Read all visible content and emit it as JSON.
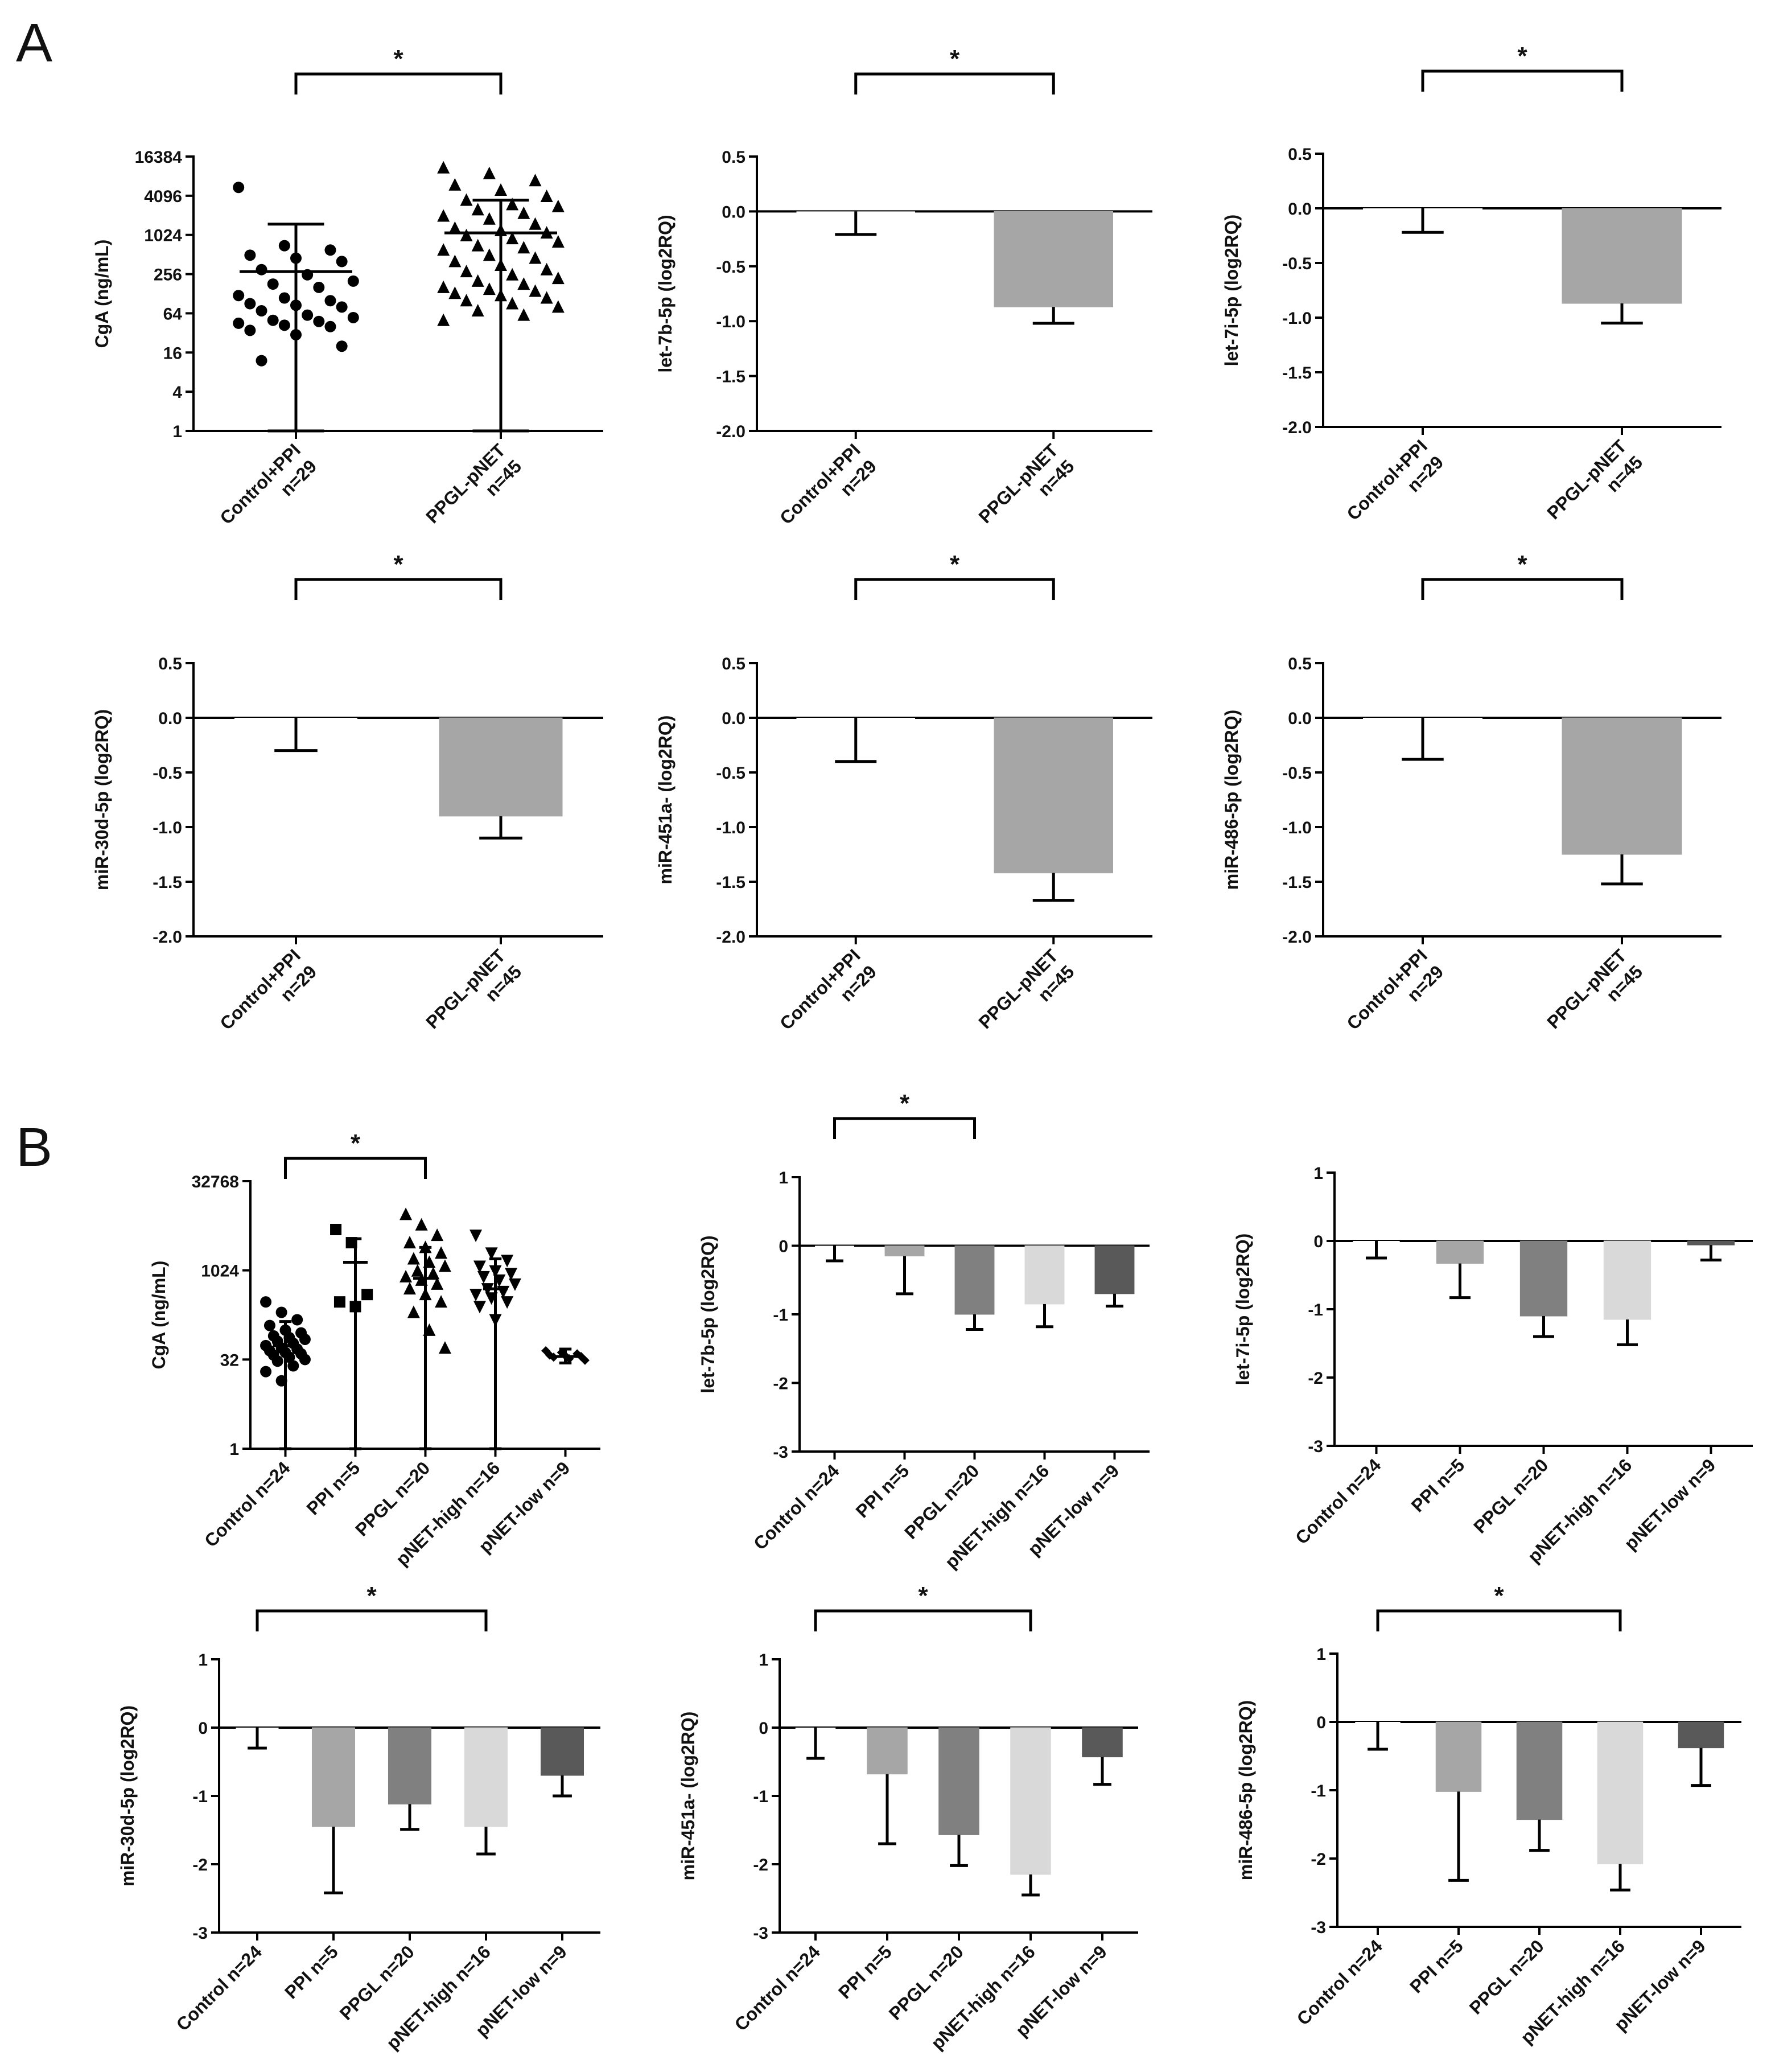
{
  "panels": [
    "A",
    "B"
  ],
  "chart_data": [
    {
      "panel": "A",
      "type": "scatter",
      "ylabel": "CgA (ng/mL)",
      "scale": "log2",
      "yticks": [
        1,
        4,
        16,
        64,
        256,
        1024,
        4096,
        16384
      ],
      "ytick_labels": [
        "1",
        "4",
        "16",
        "64",
        "256",
        "1024",
        "4096",
        "16384"
      ],
      "categories": [
        [
          "Control+PPI",
          "n=29"
        ],
        [
          "PPGL-pNET",
          "n=45"
        ]
      ],
      "markers": [
        "circle",
        "triangle"
      ],
      "means": [
        280,
        1100
      ],
      "err_lo": [
        1,
        1
      ],
      "err_hi": [
        1500,
        3500
      ],
      "points": [
        [
          5500,
          700,
          600,
          500,
          450,
          400,
          300,
          250,
          200,
          180,
          160,
          120,
          110,
          100,
          90,
          85,
          80,
          70,
          60,
          55,
          50,
          48,
          45,
          42,
          40,
          35,
          30,
          20,
          12
        ],
        [
          11000,
          9000,
          7000,
          6000,
          5000,
          4000,
          3500,
          3000,
          2800,
          2500,
          2200,
          2000,
          1800,
          1500,
          1300,
          1200,
          1100,
          1000,
          900,
          800,
          700,
          650,
          600,
          500,
          450,
          400,
          350,
          300,
          280,
          250,
          220,
          200,
          180,
          160,
          150,
          140,
          130,
          120,
          110,
          100,
          90,
          80,
          70,
          60,
          50
        ]
      ],
      "significance": [
        {
          "from": 0,
          "to": 1,
          "label": "*"
        }
      ]
    },
    {
      "panel": "A",
      "type": "bar",
      "ylabel": "let-7b-5p (log2RQ)",
      "ylim": [
        -2.0,
        0.5
      ],
      "yticks": [
        0.5,
        0.0,
        -0.5,
        -1.0,
        -1.5,
        -2.0
      ],
      "ytick_labels": [
        "0.5",
        "0.0",
        "-0.5",
        "-1.0",
        "-1.5",
        "-2.0"
      ],
      "categories": [
        [
          "Control+PPI",
          "n=29"
        ],
        [
          "PPGL-pNET",
          "n=45"
        ]
      ],
      "values": [
        0.0,
        -0.87
      ],
      "errors": [
        0.21,
        0.15
      ],
      "colors": [
        "#ffffff",
        "#a6a6a6"
      ],
      "significance": [
        {
          "from": 0,
          "to": 1,
          "label": "*"
        }
      ]
    },
    {
      "panel": "A",
      "type": "bar",
      "ylabel": "let-7i-5p (log2RQ)",
      "ylim": [
        -2.0,
        0.5
      ],
      "yticks": [
        0.5,
        0.0,
        -0.5,
        -1.0,
        -1.5,
        -2.0
      ],
      "ytick_labels": [
        "0.5",
        "0.0",
        "-0.5",
        "-1.0",
        "-1.5",
        "-2.0"
      ],
      "categories": [
        [
          "Control+PPI",
          "n=29"
        ],
        [
          "PPGL-pNET",
          "n=45"
        ]
      ],
      "values": [
        0.0,
        -0.87
      ],
      "errors": [
        0.22,
        0.18
      ],
      "colors": [
        "#ffffff",
        "#a6a6a6"
      ],
      "significance": [
        {
          "from": 0,
          "to": 1,
          "label": "*"
        }
      ]
    },
    {
      "panel": "A",
      "type": "bar",
      "ylabel": "miR-30d-5p (log2RQ)",
      "ylim": [
        -2.0,
        0.5
      ],
      "yticks": [
        0.5,
        0.0,
        -0.5,
        -1.0,
        -1.5,
        -2.0
      ],
      "ytick_labels": [
        "0.5",
        "0.0",
        "-0.5",
        "-1.0",
        "-1.5",
        "-2.0"
      ],
      "categories": [
        [
          "Control+PPI",
          "n=29"
        ],
        [
          "PPGL-pNET",
          "n=45"
        ]
      ],
      "values": [
        0.0,
        -0.9
      ],
      "errors": [
        0.3,
        0.2
      ],
      "colors": [
        "#ffffff",
        "#a6a6a6"
      ],
      "significance": [
        {
          "from": 0,
          "to": 1,
          "label": "*"
        }
      ]
    },
    {
      "panel": "A",
      "type": "bar",
      "ylabel": "miR-451a- (log2RQ)",
      "ylim": [
        -2.0,
        0.5
      ],
      "yticks": [
        0.5,
        0.0,
        -0.5,
        -1.0,
        -1.5,
        -2.0
      ],
      "ytick_labels": [
        "0.5",
        "0.0",
        "-0.5",
        "-1.0",
        "-1.5",
        "-2.0"
      ],
      "categories": [
        [
          "Control+PPI",
          "n=29"
        ],
        [
          "PPGL-pNET",
          "n=45"
        ]
      ],
      "values": [
        0.0,
        -1.42
      ],
      "errors": [
        0.4,
        0.25
      ],
      "colors": [
        "#ffffff",
        "#a6a6a6"
      ],
      "significance": [
        {
          "from": 0,
          "to": 1,
          "label": "*"
        }
      ]
    },
    {
      "panel": "A",
      "type": "bar",
      "ylabel": "miR-486-5p (log2RQ)",
      "ylim": [
        -2.0,
        0.5
      ],
      "yticks": [
        0.5,
        0.0,
        -0.5,
        -1.0,
        -1.5,
        -2.0
      ],
      "ytick_labels": [
        "0.5",
        "0.0",
        "-0.5",
        "-1.0",
        "-1.5",
        "-2.0"
      ],
      "categories": [
        [
          "Control+PPI",
          "n=29"
        ],
        [
          "PPGL-pNET",
          "n=45"
        ]
      ],
      "values": [
        0.0,
        -1.25
      ],
      "errors": [
        0.38,
        0.27
      ],
      "colors": [
        "#ffffff",
        "#a6a6a6"
      ],
      "significance": [
        {
          "from": 0,
          "to": 1,
          "label": "*"
        }
      ]
    },
    {
      "panel": "B",
      "type": "scatter",
      "ylabel": "CgA (ng/mL)",
      "scale": "log2",
      "yticks": [
        1,
        32,
        1024,
        32768
      ],
      "ytick_labels": [
        "1",
        "32",
        "1024",
        "32768"
      ],
      "categories": [
        [
          "Control n=24"
        ],
        [
          "PPI n=5"
        ],
        [
          "PPGL n=20"
        ],
        [
          "pNET-high n=16"
        ],
        [
          "pNET-low n=9"
        ]
      ],
      "markers": [
        "circle",
        "square",
        "triangle",
        "triangle-down",
        "diamond"
      ],
      "means": [
        55,
        1400,
        750,
        500,
        36
      ],
      "err_lo": [
        1,
        1,
        1,
        1,
        28
      ],
      "err_hi": [
        140,
        3500,
        2500,
        1600,
        48
      ],
      "points": [
        [
          300,
          200,
          150,
          120,
          100,
          90,
          80,
          75,
          70,
          65,
          60,
          55,
          50,
          48,
          45,
          42,
          40,
          38,
          35,
          32,
          30,
          25,
          20,
          14
        ],
        [
          5000,
          3000,
          400,
          300,
          250
        ],
        [
          9000,
          6000,
          4000,
          3000,
          2500,
          2000,
          1600,
          1400,
          1200,
          1000,
          900,
          800,
          700,
          600,
          500,
          400,
          300,
          200,
          100,
          50
        ],
        [
          4000,
          2000,
          1500,
          1200,
          1000,
          900,
          800,
          700,
          600,
          500,
          450,
          400,
          350,
          300,
          250,
          150
        ],
        [
          45,
          42,
          40,
          38,
          37,
          36,
          35,
          33,
          31
        ]
      ],
      "significance": [
        {
          "from": 0,
          "to": 2,
          "label": "*"
        }
      ]
    },
    {
      "panel": "B",
      "type": "bar",
      "ylabel": "let-7b-5p (log2RQ)",
      "ylim": [
        -3,
        1
      ],
      "yticks": [
        1,
        0,
        -1,
        -2,
        -3
      ],
      "ytick_labels": [
        "1",
        "0",
        "-1",
        "-2",
        "-3"
      ],
      "categories": [
        [
          "Control n=24"
        ],
        [
          "PPI n=5"
        ],
        [
          "PPGL n=20"
        ],
        [
          "pNET-high n=16"
        ],
        [
          "pNET-low n=9"
        ]
      ],
      "values": [
        0.0,
        -0.15,
        -1.0,
        -0.85,
        -0.7
      ],
      "errors": [
        0.22,
        0.55,
        0.22,
        0.33,
        0.18
      ],
      "colors": [
        "#ffffff",
        "#a6a6a6",
        "#808080",
        "#d9d9d9",
        "#595959"
      ],
      "significance": [
        {
          "from": 0,
          "to": 2,
          "label": "*"
        }
      ]
    },
    {
      "panel": "B",
      "type": "bar",
      "ylabel": "let-7i-5p (log2RQ)",
      "ylim": [
        -3,
        1
      ],
      "yticks": [
        1,
        0,
        -1,
        -2,
        -3
      ],
      "ytick_labels": [
        "1",
        "0",
        "-1",
        "-2",
        "-3"
      ],
      "categories": [
        [
          "Control n=24"
        ],
        [
          "PPI n=5"
        ],
        [
          "PPGL n=20"
        ],
        [
          "pNET-high n=16"
        ],
        [
          "pNET-low n=9"
        ]
      ],
      "values": [
        0.0,
        -0.33,
        -1.1,
        -1.15,
        -0.06
      ],
      "errors": [
        0.25,
        0.5,
        0.3,
        0.37,
        0.22
      ],
      "colors": [
        "#ffffff",
        "#a6a6a6",
        "#808080",
        "#d9d9d9",
        "#595959"
      ],
      "significance": []
    },
    {
      "panel": "B",
      "type": "bar",
      "ylabel": "miR-30d-5p (log2RQ)",
      "ylim": [
        -3,
        1
      ],
      "yticks": [
        1,
        0,
        -1,
        -2,
        -3
      ],
      "ytick_labels": [
        "1",
        "0",
        "-1",
        "-2",
        "-3"
      ],
      "categories": [
        [
          "Control n=24"
        ],
        [
          "PPI n=5"
        ],
        [
          "PPGL n=20"
        ],
        [
          "pNET-high n=16"
        ],
        [
          "pNET-low n=9"
        ]
      ],
      "values": [
        0.0,
        -1.45,
        -1.12,
        -1.45,
        -0.7
      ],
      "errors": [
        0.3,
        0.97,
        0.37,
        0.4,
        0.3
      ],
      "colors": [
        "#ffffff",
        "#a6a6a6",
        "#808080",
        "#d9d9d9",
        "#595959"
      ],
      "significance": [
        {
          "from": 0,
          "to": 3,
          "label": "*"
        }
      ]
    },
    {
      "panel": "B",
      "type": "bar",
      "ylabel": "miR-451a- (log2RQ)",
      "ylim": [
        -3,
        1
      ],
      "yticks": [
        1,
        0,
        -1,
        -2,
        -3
      ],
      "ytick_labels": [
        "1",
        "0",
        "-1",
        "-2",
        "-3"
      ],
      "categories": [
        [
          "Control n=24"
        ],
        [
          "PPI n=5"
        ],
        [
          "PPGL n=20"
        ],
        [
          "pNET-high n=16"
        ],
        [
          "pNET-low n=9"
        ]
      ],
      "values": [
        0.0,
        -0.68,
        -1.57,
        -2.15,
        -0.43
      ],
      "errors": [
        0.45,
        1.02,
        0.45,
        0.3,
        0.4
      ],
      "colors": [
        "#ffffff",
        "#a6a6a6",
        "#808080",
        "#d9d9d9",
        "#595959"
      ],
      "significance": [
        {
          "from": 0,
          "to": 3,
          "label": "*"
        }
      ]
    },
    {
      "panel": "B",
      "type": "bar",
      "ylabel": "miR-486-5p (log2RQ)",
      "ylim": [
        -3,
        1
      ],
      "yticks": [
        1,
        0,
        -1,
        -2,
        -3
      ],
      "ytick_labels": [
        "1",
        "0",
        "-1",
        "-2",
        "-3"
      ],
      "categories": [
        [
          "Control n=24"
        ],
        [
          "PPI n=5"
        ],
        [
          "PPGL n=20"
        ],
        [
          "pNET-high n=16"
        ],
        [
          "pNET-low n=9"
        ]
      ],
      "values": [
        0.0,
        -1.02,
        -1.43,
        -2.08,
        -0.38
      ],
      "errors": [
        0.4,
        1.3,
        0.45,
        0.38,
        0.55
      ],
      "colors": [
        "#ffffff",
        "#a6a6a6",
        "#808080",
        "#d9d9d9",
        "#595959"
      ],
      "significance": [
        {
          "from": 0,
          "to": 3,
          "label": "*"
        }
      ]
    }
  ]
}
